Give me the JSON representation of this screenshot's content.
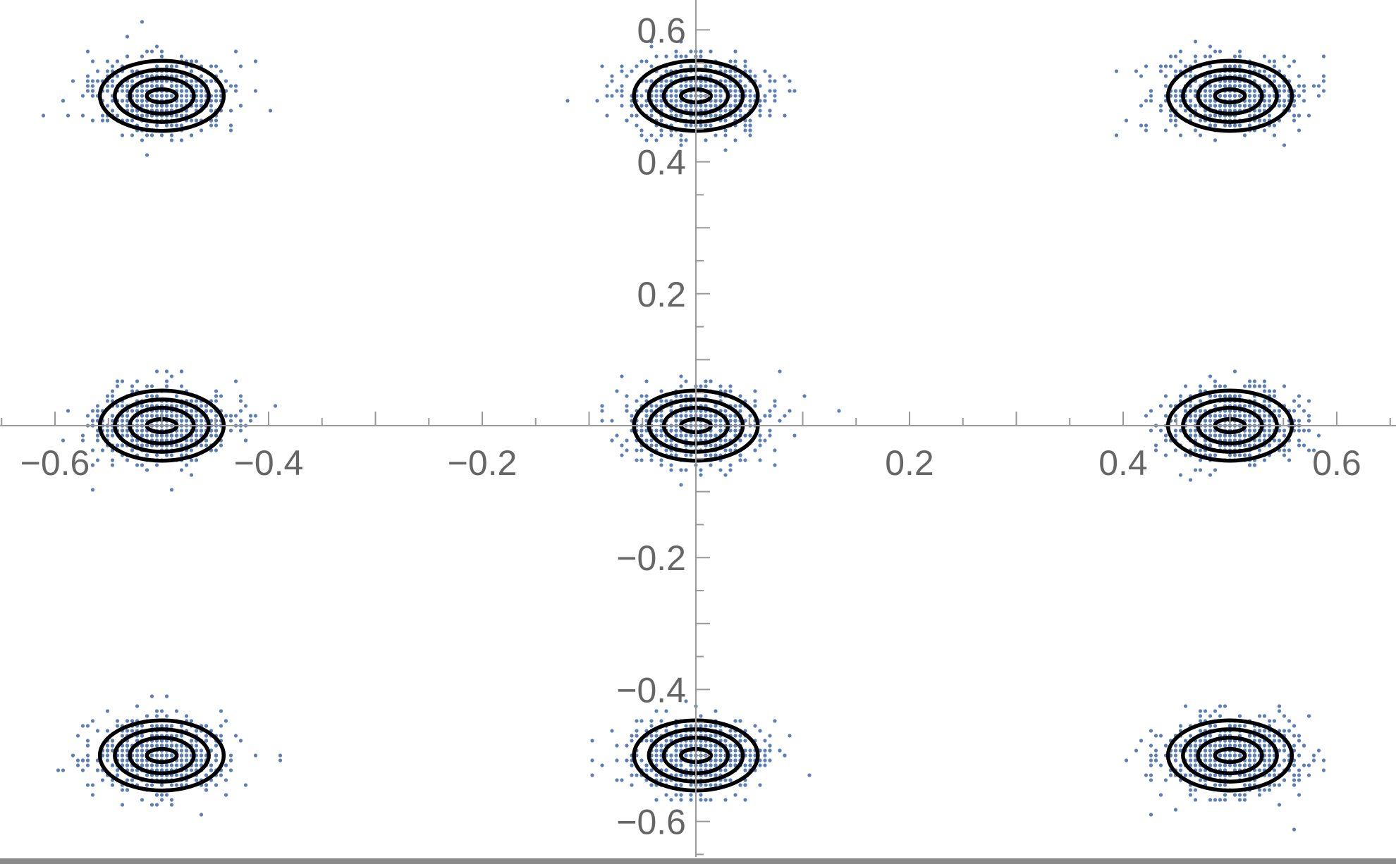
{
  "chart_data": {
    "type": "scatter",
    "title": "",
    "xlabel": "",
    "ylabel": "",
    "xlim": [
      -0.65,
      0.65
    ],
    "ylim": [
      -0.65,
      0.65
    ],
    "grid": false,
    "legend": "none",
    "point_color": "#5b7fb9",
    "contour_color": "#000000",
    "x_ticks": [
      {
        "value": -0.6,
        "label": "−0.6"
      },
      {
        "value": -0.4,
        "label": "−0.4"
      },
      {
        "value": -0.2,
        "label": "−0.2"
      },
      {
        "value": 0.2,
        "label": "0.2"
      },
      {
        "value": 0.4,
        "label": "0.4"
      },
      {
        "value": 0.6,
        "label": "0.6"
      }
    ],
    "y_ticks": [
      {
        "value": 0.6,
        "label": "0.6"
      },
      {
        "value": 0.4,
        "label": "0.4"
      },
      {
        "value": 0.2,
        "label": "0.2"
      },
      {
        "value": -0.2,
        "label": "−0.2"
      },
      {
        "value": -0.4,
        "label": "−0.4"
      },
      {
        "value": -0.6,
        "label": "−0.6"
      }
    ],
    "clusters": [
      {
        "center": [
          -0.5,
          0.5
        ],
        "spread": [
          0.035,
          0.03
        ]
      },
      {
        "center": [
          0.0,
          0.5
        ],
        "spread": [
          0.035,
          0.03
        ]
      },
      {
        "center": [
          0.5,
          0.5
        ],
        "spread": [
          0.035,
          0.03
        ]
      },
      {
        "center": [
          -0.5,
          0.0
        ],
        "spread": [
          0.035,
          0.03
        ]
      },
      {
        "center": [
          0.0,
          0.0
        ],
        "spread": [
          0.035,
          0.03
        ]
      },
      {
        "center": [
          0.5,
          0.0
        ],
        "spread": [
          0.035,
          0.03
        ]
      },
      {
        "center": [
          -0.5,
          -0.5
        ],
        "spread": [
          0.035,
          0.03
        ]
      },
      {
        "center": [
          0.0,
          -0.5
        ],
        "spread": [
          0.035,
          0.03
        ]
      },
      {
        "center": [
          0.5,
          -0.5
        ],
        "spread": [
          0.035,
          0.03
        ]
      }
    ],
    "contour_radii": [
      [
        0.058,
        0.059
      ],
      [
        0.044,
        0.044
      ],
      [
        0.03,
        0.03
      ],
      [
        0.014,
        0.011
      ]
    ]
  }
}
